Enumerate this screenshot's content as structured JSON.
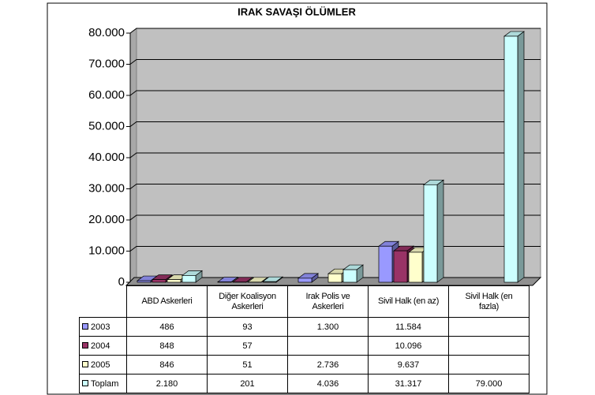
{
  "chart_data": {
    "type": "bar3d",
    "title": "IRAK SAVAŞI ÖLÜMLER",
    "categories": [
      "ABD Askerleri",
      "Diğer Koalisyon Askerleri",
      "Irak Polis ve Askerleri",
      "Sivil Halk (en az)",
      "Sivil Halk (en fazla)"
    ],
    "series": [
      {
        "name": "2003",
        "color": "#9999ff",
        "values": [
          486,
          93,
          1300,
          11584,
          null
        ],
        "value_labels": [
          "486",
          "93",
          "1.300",
          "11.584",
          null
        ]
      },
      {
        "name": "2004",
        "color": "#993366",
        "values": [
          848,
          57,
          null,
          10096,
          null
        ],
        "value_labels": [
          "848",
          "57",
          null,
          "10.096",
          null
        ]
      },
      {
        "name": "2005",
        "color": "#ffffcc",
        "values": [
          846,
          51,
          2736,
          9637,
          null
        ],
        "value_labels": [
          "846",
          "51",
          "2.736",
          "9.637",
          null
        ]
      },
      {
        "name": "Toplam",
        "color": "#ccffff",
        "values": [
          2180,
          201,
          4036,
          31317,
          79000
        ],
        "value_labels": [
          "2.180",
          "201",
          "4.036",
          "31.317",
          "79.000"
        ]
      }
    ],
    "ylim": [
      0,
      80000
    ],
    "yticks": [
      0,
      {
        "value": 10000,
        "label": "10.000"
      },
      {
        "value": 20000,
        "label": "20.000"
      },
      {
        "value": 30000,
        "label": "30.000"
      },
      {
        "value": 40000,
        "label": "40.000"
      },
      {
        "value": 50000,
        "label": "50.000"
      },
      {
        "value": 60000,
        "label": "60.000"
      },
      {
        "value": 70000,
        "label": "70.000"
      },
      {
        "value": 80000,
        "label": "80.000"
      }
    ],
    "grid": true
  }
}
